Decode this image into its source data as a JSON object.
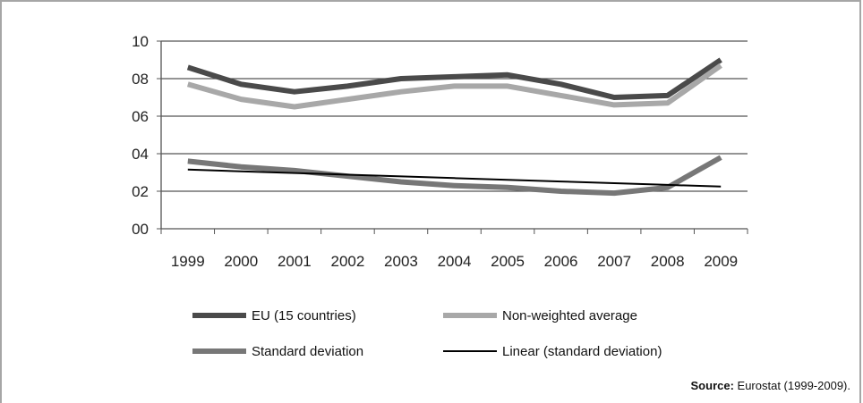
{
  "chart_data": {
    "type": "line",
    "categories": [
      "1999",
      "2000",
      "2001",
      "2002",
      "2003",
      "2004",
      "2005",
      "2006",
      "2007",
      "2008",
      "2009"
    ],
    "y_tick_labels": [
      "00",
      "02",
      "04",
      "06",
      "08",
      "10"
    ],
    "ylim": [
      0,
      10
    ],
    "grid": true,
    "legend_placement": "bottom",
    "series": [
      {
        "name": "EU (15 countries)",
        "color": "#4a4a4a",
        "values": [
          8.6,
          7.7,
          7.3,
          7.6,
          8.0,
          8.1,
          8.2,
          7.7,
          7.0,
          7.1,
          9.0
        ]
      },
      {
        "name": "Non-weighted average",
        "color": "#a8a8a8",
        "values": [
          7.7,
          6.9,
          6.5,
          6.9,
          7.3,
          7.6,
          7.6,
          7.1,
          6.6,
          6.7,
          8.7
        ]
      },
      {
        "name": "Standard deviation",
        "color": "#777777",
        "values": [
          3.6,
          3.3,
          3.1,
          2.8,
          2.5,
          2.3,
          2.2,
          2.0,
          1.9,
          2.2,
          3.8
        ]
      },
      {
        "name": "Linear (standard deviation)",
        "color": "#000000",
        "values": [
          3.15,
          3.06,
          2.97,
          2.88,
          2.79,
          2.7,
          2.61,
          2.52,
          2.43,
          2.34,
          2.25
        ]
      }
    ]
  },
  "source": {
    "label": "Source:",
    "text": " Eurostat (1999-2009)."
  }
}
